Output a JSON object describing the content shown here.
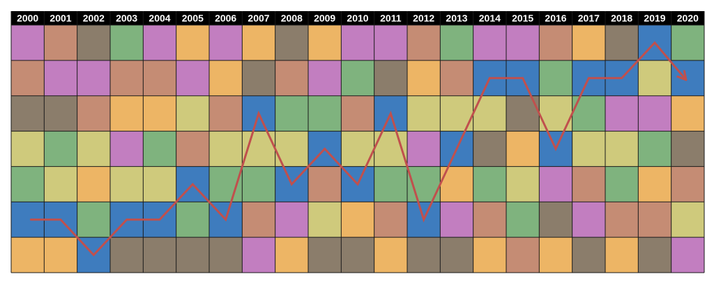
{
  "chart_data": {
    "type": "heatmap",
    "years": [
      "2000",
      "2001",
      "2002",
      "2003",
      "2004",
      "2005",
      "2006",
      "2007",
      "2008",
      "2009",
      "2010",
      "2011",
      "2012",
      "2013",
      "2014",
      "2015",
      "2016",
      "2017",
      "2018",
      "2019",
      "2020"
    ],
    "palette": {
      "P": "#C27EC0",
      "R": "#C58C74",
      "B": "#8B7D6B",
      "G": "#7FB37E",
      "O": "#EDB565",
      "Y": "#CFCA7C",
      "L": "#3E7CBE"
    },
    "grid": [
      [
        "P",
        "R",
        "B",
        "G",
        "P",
        "O",
        "P",
        "O",
        "B",
        "O",
        "P",
        "P",
        "R",
        "G",
        "P",
        "P",
        "R",
        "O",
        "B",
        "L",
        "G"
      ],
      [
        "R",
        "P",
        "P",
        "R",
        "R",
        "P",
        "O",
        "B",
        "R",
        "P",
        "G",
        "B",
        "O",
        "R",
        "L",
        "L",
        "G",
        "L",
        "L",
        "Y",
        "L"
      ],
      [
        "B",
        "B",
        "R",
        "O",
        "O",
        "Y",
        "R",
        "L",
        "G",
        "G",
        "R",
        "L",
        "Y",
        "Y",
        "Y",
        "B",
        "Y",
        "G",
        "P",
        "P",
        "O"
      ],
      [
        "Y",
        "G",
        "Y",
        "P",
        "G",
        "R",
        "Y",
        "Y",
        "Y",
        "L",
        "Y",
        "Y",
        "P",
        "L",
        "B",
        "O",
        "L",
        "Y",
        "Y",
        "G",
        "B"
      ],
      [
        "G",
        "Y",
        "O",
        "Y",
        "Y",
        "L",
        "G",
        "G",
        "L",
        "R",
        "L",
        "G",
        "G",
        "O",
        "G",
        "Y",
        "P",
        "R",
        "G",
        "O",
        "R"
      ],
      [
        "L",
        "L",
        "G",
        "L",
        "L",
        "G",
        "L",
        "R",
        "P",
        "Y",
        "O",
        "R",
        "L",
        "P",
        "R",
        "G",
        "B",
        "P",
        "R",
        "R",
        "Y"
      ],
      [
        "O",
        "O",
        "L",
        "B",
        "B",
        "B",
        "B",
        "P",
        "O",
        "B",
        "B",
        "O",
        "B",
        "B",
        "O",
        "R",
        "O",
        "B",
        "O",
        "B",
        "P"
      ]
    ],
    "line": {
      "color": "#C0504D",
      "track_color": "L",
      "rows": [
        6,
        6,
        7,
        6,
        6,
        5,
        6,
        3,
        5,
        4,
        5,
        3,
        6,
        4,
        2,
        2,
        4,
        2,
        2,
        1,
        2
      ],
      "arrow_end": true
    }
  }
}
